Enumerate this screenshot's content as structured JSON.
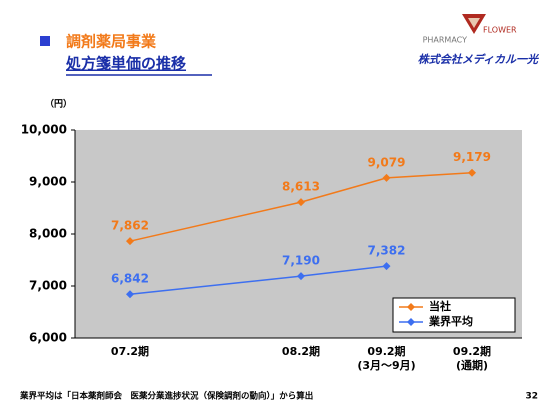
{
  "header": {
    "title": "調剤薬局事業",
    "subtitle": "処方箋単価の推移",
    "logo_left": "PHARMACY",
    "logo_right": "FLOWER",
    "company": "株式会社メディカル一光"
  },
  "chart_data": {
    "type": "line",
    "y_unit": "（円）",
    "categories": [
      "07.2期",
      "08.2期",
      "09.2期\n(3月～9月)",
      "09.2期\n(通期)"
    ],
    "series": [
      {
        "name": "当社",
        "color": "#f27a1a",
        "values": [
          7862,
          8613,
          9079,
          9179
        ],
        "value_labels": [
          "7,862",
          "8,613",
          "9,079",
          "9,179"
        ]
      },
      {
        "name": "業界平均",
        "color": "#3d6ff0",
        "values": [
          6842,
          7190,
          7382,
          null
        ],
        "value_labels": [
          "6,842",
          "7,190",
          "7,382",
          null
        ]
      }
    ],
    "ylim": [
      6000,
      10000
    ],
    "yticks": [
      {
        "value": 6000,
        "label": "6,000"
      },
      {
        "value": 7000,
        "label": "7,000"
      },
      {
        "value": 8000,
        "label": "8,000"
      },
      {
        "value": 9000,
        "label": "9,000"
      },
      {
        "value": 10000,
        "label": "10,000"
      }
    ],
    "legend": "lower right"
  },
  "footer": {
    "note": "業界平均は「日本薬剤師会　医薬分業進捗状況（保険調剤の動向）」から算出",
    "page": "32"
  }
}
